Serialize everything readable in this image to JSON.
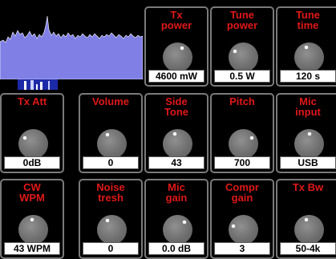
{
  "tiles": [
    {
      "id": "tx-power",
      "label": "Tx\npower",
      "value": "4600 mW",
      "knob": 0.6
    },
    {
      "id": "tune-power",
      "label": "Tune\npower",
      "value": "0.5 W",
      "knob": 0.3
    },
    {
      "id": "tune-time",
      "label": "Tune\ntime",
      "value": "120 s",
      "knob": 0.45
    },
    {
      "id": "tx-att",
      "label": "Tx Att",
      "value": "0dB",
      "knob": 0.3
    },
    {
      "id": "volume",
      "label": "Volume",
      "value": "0",
      "knob": 0.4
    },
    {
      "id": "side-tone",
      "label": "Side\nTone",
      "value": "43",
      "knob": 0.45
    },
    {
      "id": "pitch",
      "label": "Pitch",
      "value": "700",
      "knob": 0.7
    },
    {
      "id": "mic-input",
      "label": "Mic\ninput",
      "value": "USB",
      "knob": 0.5
    },
    {
      "id": "cw-wpm",
      "label": "CW\nWPM",
      "value": "43 WPM",
      "knob": 0.48
    },
    {
      "id": "noise-tresh",
      "label": "Noise\ntresh",
      "value": "0",
      "knob": 0.4
    },
    {
      "id": "mic-gain",
      "label": "Mic\ngain",
      "value": "0.0 dB",
      "knob": 0.65
    },
    {
      "id": "compr-gain",
      "label": "Compr\ngain",
      "value": "3",
      "knob": 0.25
    },
    {
      "id": "tx-bw",
      "label": "Tx Bw",
      "value": "50-4k",
      "knob": 0.45
    }
  ],
  "colors": {
    "label": "#e01818",
    "tile_border": "#7a7a7a",
    "spectrum_filter": "#b03040",
    "spectrum_fill": "#7f7fe6",
    "waterfall": "#1c2aa8"
  }
}
